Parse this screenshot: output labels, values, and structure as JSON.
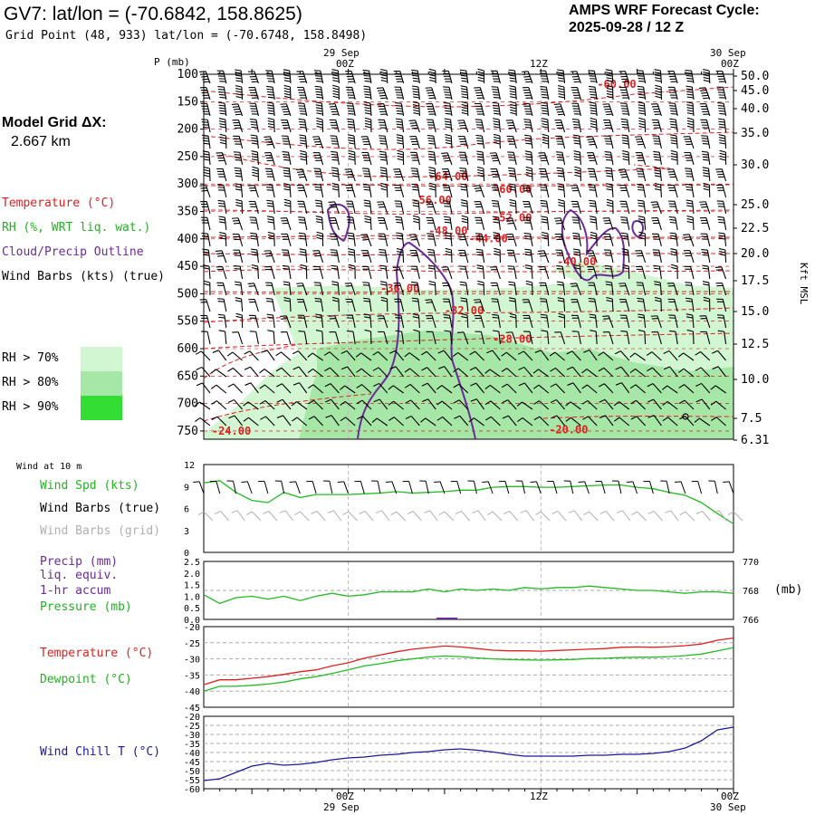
{
  "header": {
    "title": "GV7:  lat/lon = (-70.6842, 158.8625)",
    "grid_point": "Grid Point (48, 933) lat/lon = (-70.6748, 158.8498)",
    "forecast_label": "AMPS WRF Forecast Cycle:",
    "forecast_cycle": "2025-09-28 / 12  Z",
    "model_grid_label": "Model Grid ΔX:",
    "model_grid_value": "2.667 km"
  },
  "time_axis": {
    "top_dates": [
      "29 Sep",
      "30 Sep"
    ],
    "labels": [
      "00Z",
      "12Z",
      "00Z"
    ],
    "bottom_dates": [
      "29 Sep",
      "30 Sep"
    ]
  },
  "legend": {
    "temperature": "Temperature (°C)",
    "rh": "RH (%, WRT liq. wat.)",
    "cloud": "Cloud/Precip Outline",
    "wind_barbs": "Wind Barbs (kts) (true)",
    "rh70": "RH > 70%",
    "rh80": "RH > 80%",
    "rh90": "RH > 90%",
    "rh70_color": "#d2f5d2",
    "rh80_color": "#a6e6a6",
    "rh90_color": "#33dd33"
  },
  "panel_labels": {
    "wind10m": "Wind at 10 m",
    "wind_spd": "Wind Spd (kts)",
    "barbs_true": "Wind Barbs (true)",
    "barbs_grid": "Wind Barbs (grid)",
    "precip": "Precip (mm)",
    "liq": "liq. equiv.",
    "accum": "1-hr accum",
    "pressure": "Pressure (mb)",
    "pressure_unit": "(mb)",
    "temperature": "Temperature (°C)",
    "dewpoint": "Dewpoint (°C)",
    "wind_chill": "Wind Chill T (°C)"
  },
  "chart_data": [
    {
      "type": "contour",
      "name": "vertical-profile",
      "yaxis_title": "P (mb)",
      "y2axis_title": "Kft MSL",
      "pressure_ticks": [
        "100",
        "150",
        "200",
        "250",
        "300",
        "350",
        "400",
        "450",
        "500",
        "550",
        "600",
        "650",
        "700",
        "750"
      ],
      "height_ticks": [
        "50.0",
        "45.0",
        "40.0",
        "35.0",
        "30.0",
        "25.0",
        "22.5",
        "20.0",
        "17.5",
        "15.0",
        "12.5",
        "10.0",
        "7.5",
        "6.31"
      ],
      "height_values_kft": [
        50.0,
        45.0,
        40.0,
        35.0,
        30.0,
        25.0,
        22.5,
        20.0,
        17.5,
        15.0,
        12.5,
        10.0,
        7.5,
        6.31
      ],
      "temperature_contour_labels": [
        {
          "text": "-60.00",
          "hour": 15.5,
          "p": 125
        },
        {
          "text": "-64.00",
          "hour": 5.0,
          "p": 293
        },
        {
          "text": "-60.00",
          "hour": 9.0,
          "p": 316
        },
        {
          "text": "-56.00",
          "hour": 4.0,
          "p": 336
        },
        {
          "text": "-52.00",
          "hour": 9.0,
          "p": 368
        },
        {
          "text": "-48.00",
          "hour": 5.0,
          "p": 392
        },
        {
          "text": "-44.00",
          "hour": 7.5,
          "p": 406
        },
        {
          "text": "-40.00",
          "hour": 13.0,
          "p": 448
        },
        {
          "text": "-36.00",
          "hour": 2.0,
          "p": 497
        },
        {
          "text": "-32.00",
          "hour": 6.0,
          "p": 537
        },
        {
          "text": "-28.00",
          "hour": 9.0,
          "p": 589
        },
        {
          "text": "-24.00",
          "hour": -8.5,
          "p": 757
        },
        {
          "text": "-20.00",
          "hour": 12.5,
          "p": 754
        }
      ]
    },
    {
      "type": "line",
      "name": "wind-speed-10m",
      "ylabel": "Wind Spd (kts)",
      "ylim": [
        0,
        12
      ],
      "yticks": [
        "12",
        "9",
        "6",
        "3",
        "0"
      ],
      "x_hours": [
        -9,
        -8,
        -7,
        -6,
        -5,
        -4,
        -3,
        -2,
        -1,
        0,
        1,
        2,
        3,
        4,
        5,
        6,
        7,
        8,
        9,
        10,
        11,
        12,
        13,
        14,
        15,
        16,
        17,
        18,
        19,
        20,
        21,
        22,
        23,
        24
      ],
      "values": [
        9.5,
        9.8,
        8.2,
        7.1,
        6.8,
        8.2,
        7.5,
        7.9,
        7.9,
        7.9,
        8.0,
        8.1,
        8.3,
        8.1,
        8.2,
        8.3,
        8.5,
        8.5,
        8.9,
        9.0,
        9.0,
        8.9,
        8.9,
        9.0,
        9.1,
        9.2,
        9.2,
        8.9,
        8.7,
        8.2,
        7.8,
        6.8,
        5.3,
        3.9
      ]
    },
    {
      "type": "line",
      "name": "pressure",
      "ylabel": "Pressure (mb)",
      "precip_ylim": [
        0,
        2.5
      ],
      "precip_ticks": [
        "2.5",
        "2.0",
        "1.5",
        "1.0",
        "0.5",
        "0.0"
      ],
      "pressure_ticks": [
        "770",
        "768",
        "766"
      ],
      "pressure_ylim": [
        766,
        770
      ],
      "x_hours": [
        -9,
        -8,
        -7,
        -6,
        -5,
        -4,
        -3,
        -2,
        -1,
        0,
        1,
        2,
        3,
        4,
        5,
        6,
        7,
        8,
        9,
        10,
        11,
        12,
        13,
        14,
        15,
        16,
        17,
        18,
        19,
        20,
        21,
        22,
        23,
        24
      ],
      "values": [
        767.7,
        767.1,
        767.5,
        767.6,
        767.4,
        767.6,
        767.3,
        767.6,
        767.8,
        767.6,
        767.7,
        767.9,
        767.9,
        767.9,
        768.1,
        767.9,
        768.1,
        768.0,
        768.1,
        768.0,
        768.2,
        768.1,
        768.2,
        768.2,
        768.3,
        768.2,
        768.1,
        768.0,
        768.0,
        767.9,
        767.8,
        767.9,
        767.9,
        767.8
      ],
      "precip_values": [
        0,
        0,
        0,
        0,
        0,
        0,
        0,
        0,
        0,
        0,
        0,
        0,
        0,
        0,
        0,
        0,
        0,
        0,
        0,
        0,
        0,
        0,
        0,
        0,
        0,
        0,
        0,
        0,
        0,
        0,
        0,
        0,
        0,
        0
      ]
    },
    {
      "type": "line",
      "name": "temperature-dewpoint",
      "ylim": [
        -45,
        -20
      ],
      "yticks": [
        "-20",
        "-25",
        "-30",
        "-35",
        "-40",
        "-45"
      ],
      "x_hours": [
        -9,
        -8,
        -7,
        -6,
        -5,
        -4,
        -3,
        -2,
        -1,
        0,
        1,
        2,
        3,
        4,
        5,
        6,
        7,
        8,
        9,
        10,
        11,
        12,
        13,
        14,
        15,
        16,
        17,
        18,
        19,
        20,
        21,
        22,
        23,
        24
      ],
      "series": [
        {
          "name": "Temperature",
          "color": "#e02020",
          "values": [
            -38,
            -36.5,
            -36.5,
            -36,
            -35.5,
            -34.8,
            -34,
            -33.4,
            -32.2,
            -31.2,
            -29.8,
            -28.8,
            -27.8,
            -27,
            -26.5,
            -26,
            -26.3,
            -26.8,
            -27.3,
            -27.5,
            -27.5,
            -27.6,
            -27.4,
            -27.2,
            -27,
            -26.8,
            -26.4,
            -26.3,
            -26.4,
            -26.2,
            -25.9,
            -25.4,
            -24.2,
            -23.5
          ]
        },
        {
          "name": "Dewpoint",
          "color": "#22bb22",
          "values": [
            -40,
            -38.5,
            -38.5,
            -38.2,
            -37.8,
            -37.2,
            -36.2,
            -35.5,
            -34.5,
            -33.4,
            -32.2,
            -31.5,
            -30.6,
            -30,
            -29.4,
            -29.1,
            -29.3,
            -29.7,
            -30,
            -30.2,
            -30.3,
            -30.4,
            -30.3,
            -30.2,
            -29.9,
            -29.8,
            -29.6,
            -29.5,
            -29.5,
            -29.3,
            -29,
            -28.5,
            -27.5,
            -26.5
          ]
        }
      ]
    },
    {
      "type": "line",
      "name": "wind-chill",
      "ylabel": "Wind Chill T (°C)",
      "ylim": [
        -60,
        -20
      ],
      "yticks": [
        "-20",
        "-25",
        "-30",
        "-35",
        "-40",
        "-45",
        "-50",
        "-55",
        "-60"
      ],
      "x_hours": [
        -9,
        -8,
        -7,
        -6,
        -5,
        -4,
        -3,
        -2,
        -1,
        0,
        1,
        2,
        3,
        4,
        5,
        6,
        7,
        8,
        9,
        10,
        11,
        12,
        13,
        14,
        15,
        16,
        17,
        18,
        19,
        20,
        21,
        22,
        23,
        24
      ],
      "values": [
        -55.5,
        -54.5,
        -51,
        -47.5,
        -46,
        -47,
        -46.5,
        -45.5,
        -44,
        -43,
        -42.5,
        -41.5,
        -41,
        -40,
        -39.5,
        -38.5,
        -38,
        -38.7,
        -39.7,
        -41,
        -42,
        -42,
        -42,
        -42,
        -41.5,
        -41.5,
        -41,
        -41,
        -40.5,
        -39.5,
        -37.5,
        -33.5,
        -27.5,
        -26
      ]
    }
  ]
}
